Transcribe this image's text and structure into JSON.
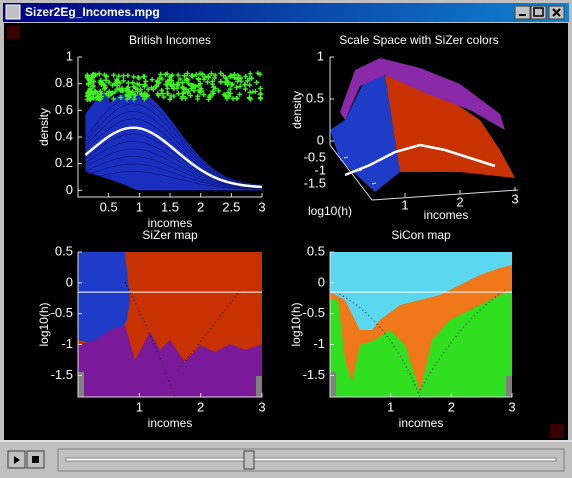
{
  "window": {
    "title": "Sizer2Eg_Incomes.mpg"
  },
  "plots": [
    {
      "title": "British Incomes",
      "xlabel": "incomes",
      "ylabel": "density",
      "xlim": [
        0,
        3
      ],
      "ylim": [
        -0.05,
        1
      ],
      "xticks": [
        0.5,
        1,
        1.5,
        2,
        2.5,
        3
      ],
      "yticks": [
        0,
        0.2,
        0.4,
        0.6,
        0.8,
        1
      ]
    },
    {
      "title": "Scale Space with SiZer colors",
      "xlabel": "incomes",
      "ylabel": "log10(h)",
      "zlabel": "density",
      "xticks": [
        1,
        2,
        3
      ],
      "yticks": [
        -1.5,
        -1,
        -0.5
      ],
      "zticks": [
        0,
        0.5,
        1
      ]
    },
    {
      "title": "SiZer map",
      "xlabel": "incomes",
      "ylabel": "log10(h)",
      "xlim": [
        0,
        3
      ],
      "ylim": [
        -1.85,
        0.5
      ],
      "xticks": [
        1,
        2,
        3
      ],
      "yticks": [
        -1.5,
        -1,
        -0.5,
        0,
        0.5
      ]
    },
    {
      "title": "SiCon map",
      "xlabel": "incomes",
      "ylabel": "log10(h)",
      "xlim": [
        0,
        3
      ],
      "ylim": [
        -1.85,
        0.5
      ],
      "xticks": [
        1,
        2,
        3
      ],
      "yticks": [
        -1.5,
        -1,
        -0.5,
        0,
        0.5
      ]
    }
  ]
}
